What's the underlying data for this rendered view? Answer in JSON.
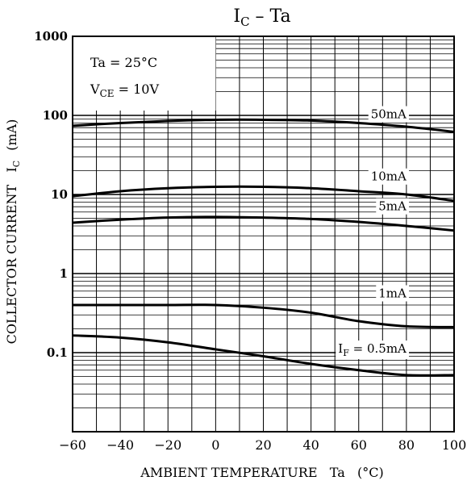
{
  "chart_data": {
    "type": "line",
    "title_main": "I",
    "title_sub": "C",
    "title_rest": " – Ta",
    "xlabel": "AMBIENT TEMPERATURE   Ta   (°C)",
    "ylabel_main": "COLLECTOR CURRENT   I",
    "ylabel_sub": "C",
    "ylabel_unit": "(mA)",
    "xlim": [
      -60,
      100
    ],
    "ylim": [
      0.01,
      1000
    ],
    "y_scale": "log",
    "grid": true,
    "x_ticks": [
      -60,
      -40,
      -20,
      0,
      20,
      40,
      60,
      80,
      100
    ],
    "x_tick_labels": [
      "−60",
      "−40",
      "−20",
      "0",
      "20",
      "40",
      "60",
      "80",
      "100"
    ],
    "y_ticks": [
      0.1,
      1,
      10,
      100,
      1000
    ],
    "y_tick_labels": [
      "0.1",
      "1",
      "10",
      "100",
      "1000"
    ],
    "conditions": [
      {
        "main": "Ta = 25°C",
        "sub": "",
        "rest": ""
      },
      {
        "main": "V",
        "sub": "CE",
        "rest": " = 10V"
      }
    ],
    "series": [
      {
        "name": "50mA",
        "label_prefix": "",
        "label_sub": "",
        "label_rest": "50mA",
        "label_x": 80,
        "label_y": 92,
        "x": [
          -60,
          -40,
          -20,
          0,
          20,
          40,
          60,
          80,
          100
        ],
        "values": [
          74,
          80,
          85,
          88,
          88,
          86,
          80,
          72,
          62
        ]
      },
      {
        "name": "10mA",
        "label_prefix": "",
        "label_sub": "",
        "label_rest": "10mA",
        "label_x": 80,
        "label_y": 15,
        "x": [
          -60,
          -40,
          -20,
          0,
          20,
          40,
          60,
          80,
          100
        ],
        "values": [
          9.5,
          11,
          12,
          12.5,
          12.5,
          12,
          11,
          10,
          8.3
        ]
      },
      {
        "name": "5mA",
        "label_prefix": "",
        "label_sub": "",
        "label_rest": "5mA",
        "label_x": 80,
        "label_y": 6.3,
        "x": [
          -60,
          -40,
          -20,
          0,
          20,
          40,
          60,
          80,
          100
        ],
        "values": [
          4.4,
          4.8,
          5.1,
          5.2,
          5.1,
          4.9,
          4.5,
          4.0,
          3.5
        ]
      },
      {
        "name": "1mA",
        "label_prefix": "",
        "label_sub": "",
        "label_rest": "1mA",
        "label_x": 80,
        "label_y": 0.5,
        "x": [
          -60,
          -40,
          -20,
          0,
          20,
          40,
          60,
          80,
          100
        ],
        "values": [
          0.4,
          0.4,
          0.4,
          0.4,
          0.37,
          0.32,
          0.25,
          0.215,
          0.21
        ]
      },
      {
        "name": "IF = 0.5mA",
        "label_prefix": "I",
        "label_sub": "F",
        "label_rest": " = 0.5mA",
        "label_x": 80,
        "label_y": 0.1,
        "x": [
          -60,
          -40,
          -20,
          0,
          20,
          40,
          60,
          80,
          100
        ],
        "values": [
          0.165,
          0.155,
          0.135,
          0.11,
          0.09,
          0.072,
          0.06,
          0.052,
          0.052
        ]
      }
    ]
  }
}
